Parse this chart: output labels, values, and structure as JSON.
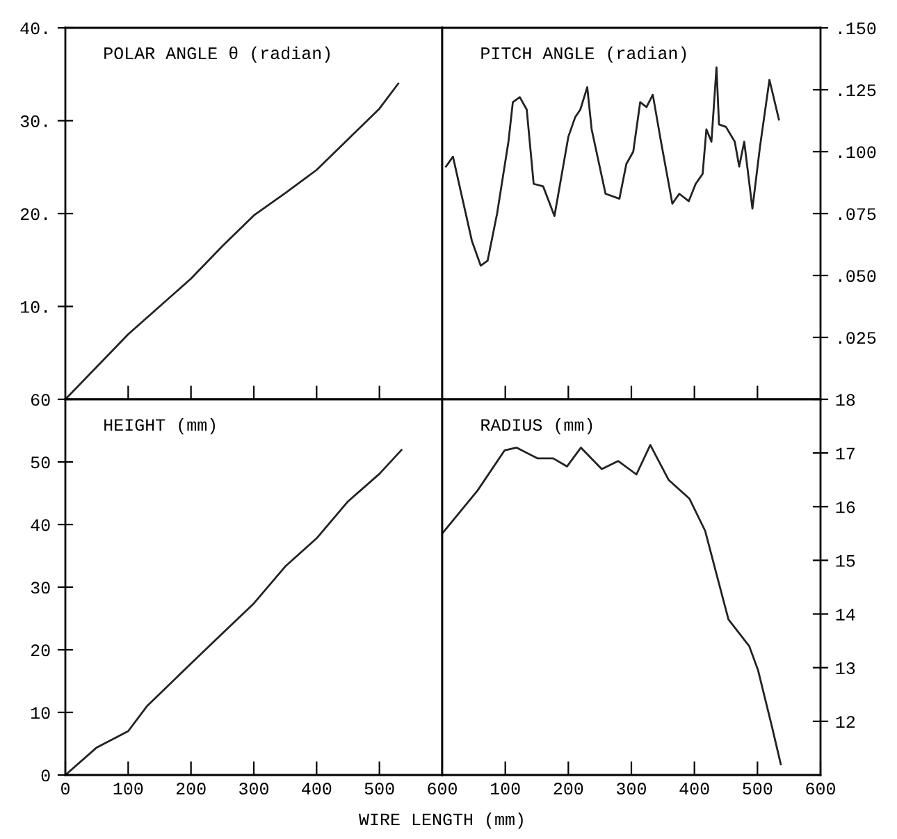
{
  "chart_data": [
    {
      "type": "line",
      "title": "POLAR ANGLE θ (radian)",
      "tick_labels": "y",
      "xlim": [
        0,
        600
      ],
      "xticks": [
        100,
        200,
        300,
        400,
        500
      ],
      "ylim": [
        0,
        40
      ],
      "yticks": [
        {
          "value": 10,
          "label": "10."
        },
        {
          "value": 20,
          "label": "20."
        },
        {
          "value": 30,
          "label": "30."
        },
        {
          "value": 40,
          "label": "40."
        }
      ],
      "x": [
        0,
        50,
        100,
        150,
        200,
        250,
        300,
        350,
        400,
        450,
        500,
        530
      ],
      "series": [
        {
          "color": "#222222",
          "values": [
            0,
            3.5,
            7.0,
            10.0,
            13.0,
            16.5,
            19.8,
            22.2,
            24.7,
            28.0,
            31.3,
            34.0
          ]
        }
      ]
    },
    {
      "type": "line",
      "title": "PITCH ANGLE (radian)",
      "tick_labels": "y",
      "xlim": [
        0,
        600
      ],
      "xticks": [
        100,
        200,
        300,
        400,
        500
      ],
      "ylim": [
        0,
        0.15
      ],
      "yticks": [
        {
          "value": 0.025,
          "label": ".025"
        },
        {
          "value": 0.05,
          "label": ".050"
        },
        {
          "value": 0.075,
          "label": ".075"
        },
        {
          "value": 0.1,
          "label": ".100"
        },
        {
          "value": 0.125,
          "label": ".125"
        },
        {
          "value": 0.15,
          "label": ".150"
        }
      ],
      "x": [
        6,
        17,
        32,
        47,
        61,
        72,
        87,
        105,
        112,
        123,
        134,
        145,
        160,
        178,
        200,
        211,
        219,
        230,
        237,
        259,
        281,
        292,
        303,
        314,
        324,
        334,
        347,
        365,
        376,
        391,
        402,
        413,
        419,
        427,
        435,
        439,
        450,
        464,
        471,
        479,
        492,
        504,
        519,
        534
      ],
      "series": [
        {
          "color": "#222222",
          "values": [
            0.094,
            0.098,
            0.081,
            0.064,
            0.054,
            0.056,
            0.075,
            0.104,
            0.12,
            0.122,
            0.117,
            0.087,
            0.086,
            0.074,
            0.106,
            0.114,
            0.117,
            0.126,
            0.109,
            0.083,
            0.081,
            0.095,
            0.1,
            0.12,
            0.118,
            0.123,
            0.104,
            0.079,
            0.083,
            0.08,
            0.087,
            0.091,
            0.109,
            0.104,
            0.134,
            0.111,
            0.11,
            0.104,
            0.094,
            0.104,
            0.077,
            0.102,
            0.129,
            0.113
          ]
        }
      ]
    },
    {
      "type": "line",
      "title": "HEIGHT (mm)",
      "xlabel": "WIRE LENGTH (mm)",
      "xlim": [
        0,
        600
      ],
      "xticks": [
        0,
        100,
        200,
        300,
        400,
        500,
        600
      ],
      "ylim": [
        0,
        60
      ],
      "yticks": [
        0,
        10,
        20,
        30,
        40,
        50,
        60
      ],
      "x": [
        0,
        50,
        100,
        130,
        200,
        250,
        300,
        350,
        400,
        450,
        500,
        535
      ],
      "series": [
        {
          "color": "#222222",
          "values": [
            0,
            4.4,
            7.0,
            11.0,
            17.8,
            22.6,
            27.4,
            33.3,
            37.8,
            43.7,
            48.1,
            51.9
          ]
        }
      ]
    },
    {
      "type": "line",
      "title": "RADIUS (mm)",
      "xlim": [
        0,
        600
      ],
      "xticks": [
        100,
        200,
        300,
        400,
        500,
        600
      ],
      "ylim": [
        11,
        18
      ],
      "yticks": [
        12,
        13,
        14,
        15,
        16,
        17,
        18
      ],
      "x": [
        0,
        56,
        99,
        118,
        151,
        176,
        198,
        220,
        253,
        279,
        308,
        330,
        359,
        392,
        417,
        436,
        454,
        487,
        501,
        523,
        537
      ],
      "series": [
        {
          "color": "#222222",
          "values": [
            15.5,
            16.3,
            17.05,
            17.1,
            16.9,
            16.9,
            16.75,
            17.1,
            16.7,
            16.85,
            16.6,
            17.15,
            16.5,
            16.15,
            15.55,
            14.7,
            13.9,
            13.4,
            12.95,
            11.9,
            11.2
          ]
        }
      ]
    }
  ]
}
